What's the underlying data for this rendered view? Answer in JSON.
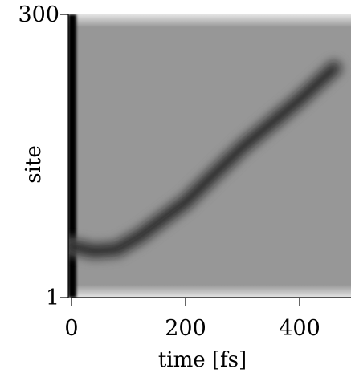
{
  "chart_data": {
    "type": "heatmap",
    "title": "",
    "xlabel": "time [fs]",
    "ylabel": "site",
    "xlim": [
      0,
      460
    ],
    "ylim": [
      1,
      300
    ],
    "x_ticks": [
      0,
      200,
      400
    ],
    "y_ticks": [
      1,
      300
    ],
    "colormap": {
      "low": "#000000",
      "high": "#c4c4c4"
    },
    "background_value": 0.77,
    "grid": false,
    "legend": "none",
    "features": [
      {
        "name": "initial-excitation",
        "x": 0,
        "y_range": [
          1,
          300
        ],
        "intensity": 0.0
      },
      {
        "name": "propagating-packet",
        "points": [
          {
            "x": 0,
            "y": 55
          },
          {
            "x": 40,
            "y": 50
          },
          {
            "x": 80,
            "y": 52
          },
          {
            "x": 120,
            "y": 66
          },
          {
            "x": 200,
            "y": 102
          },
          {
            "x": 300,
            "y": 160
          },
          {
            "x": 400,
            "y": 210
          },
          {
            "x": 460,
            "y": 243
          }
        ],
        "intensity": 0.2
      }
    ]
  }
}
